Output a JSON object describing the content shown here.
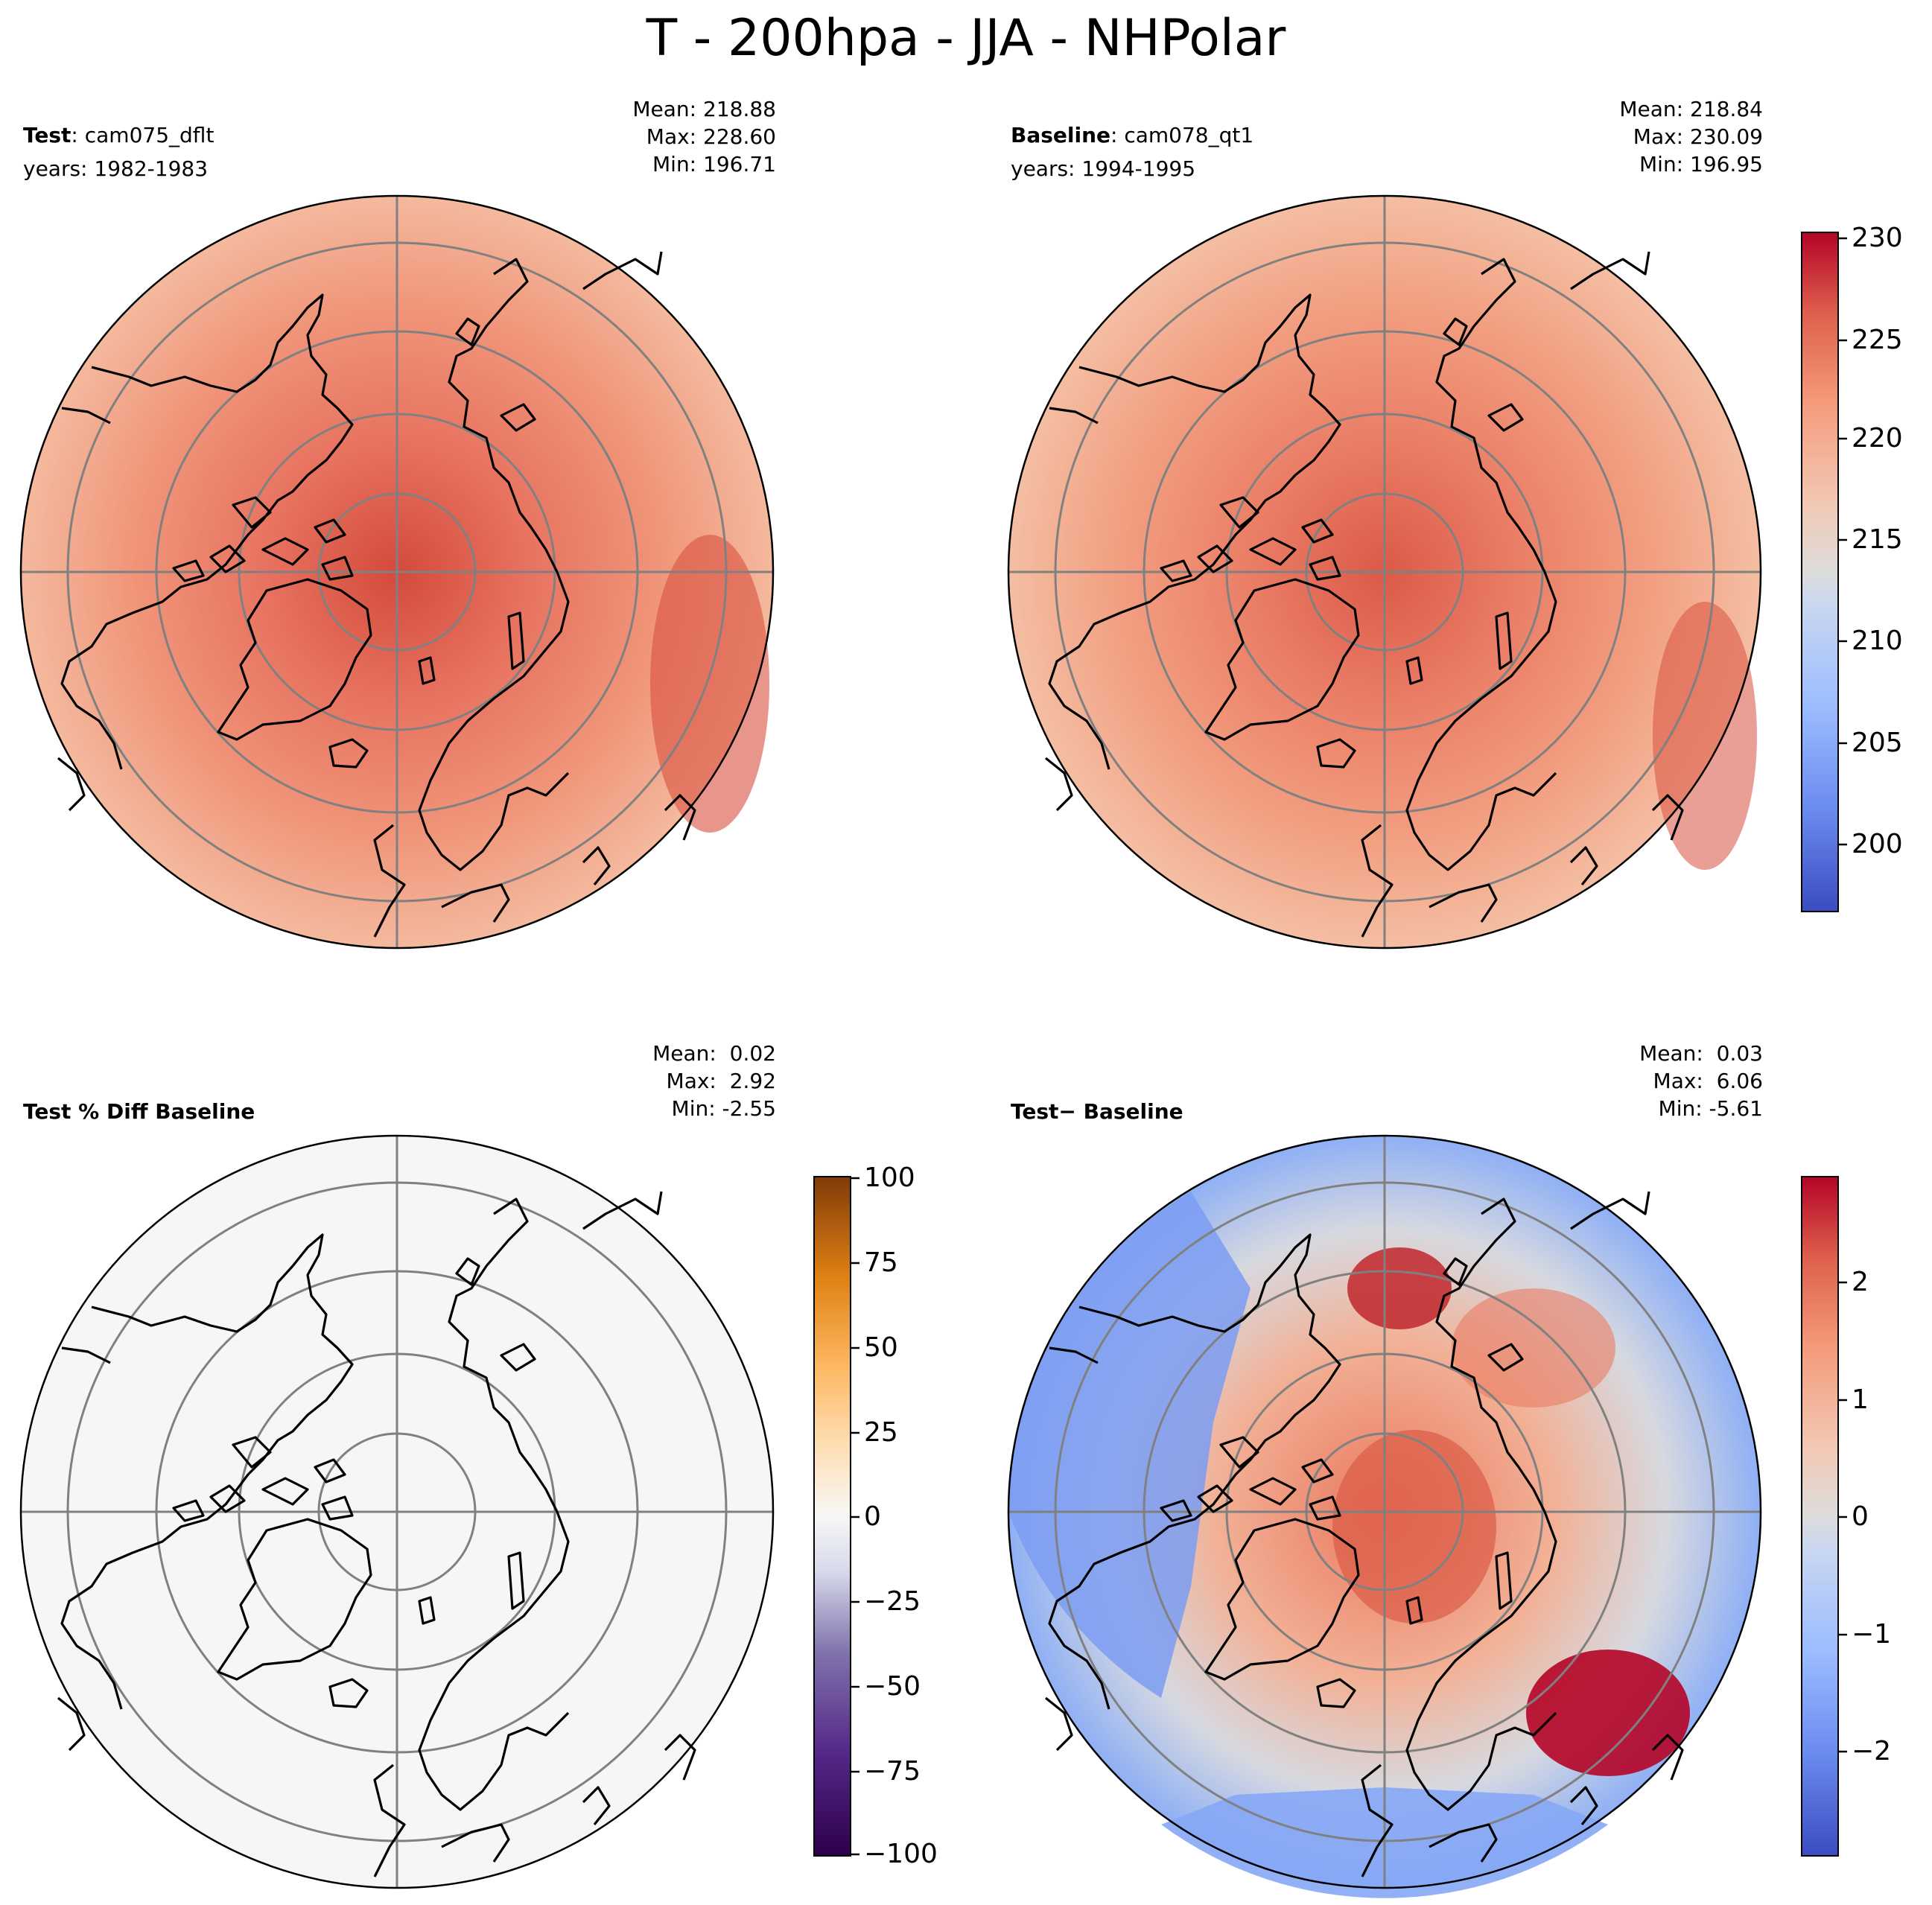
{
  "figure": {
    "title": "T - 200hpa - JJA - NHPolar"
  },
  "panels": [
    {
      "id": "test",
      "label_bold": "Test",
      "label_rest": ": cam075_dflt",
      "years": "years: 1982-1983",
      "stats": {
        "mean": "Mean: 218.88",
        "max": "Max: 228.60",
        "min": "Min: 196.71"
      }
    },
    {
      "id": "baseline",
      "label_bold": "Baseline",
      "label_rest": ": cam078_qt1",
      "years": "years: 1994-1995",
      "stats": {
        "mean": "Mean: 218.84",
        "max": "Max: 230.09",
        "min": "Min: 196.95"
      }
    },
    {
      "id": "pct-diff",
      "label_bold": "Test % Diff Baseline",
      "label_rest": "",
      "years": "",
      "stats": {
        "mean": "Mean:  0.02",
        "max": "Max:  2.92",
        "min": "Min: -2.55"
      }
    },
    {
      "id": "diff",
      "label_bold": "Test",
      "label_rest": "− Baseline",
      "years": "",
      "stats": {
        "mean": "Mean:  0.03",
        "max": "Max:  6.06",
        "min": "Min: -5.61"
      }
    }
  ],
  "colorbars": {
    "main": {
      "ticks": [
        "230",
        "225",
        "220",
        "215",
        "210",
        "205",
        "200"
      ],
      "range": [
        197,
        230
      ],
      "colormap": "coolwarm"
    },
    "pct": {
      "ticks": [
        "100",
        "75",
        "50",
        "25",
        "0",
        "−25",
        "−50",
        "−75",
        "−100"
      ],
      "range": [
        -100,
        100
      ],
      "colormap": "PuOr_r"
    },
    "diff": {
      "ticks": [
        "2",
        "1",
        "0",
        "−1",
        "−2"
      ],
      "range": [
        -2.9,
        2.9
      ],
      "colormap": "coolwarm"
    }
  },
  "chart_data": [
    {
      "type": "heatmap",
      "projection": "north-polar-stereographic",
      "field": "T",
      "level": "200hpa",
      "season": "JJA",
      "region": "NHPolar",
      "case": "cam075_dflt",
      "mean": 218.88,
      "max": 228.6,
      "min": 196.71,
      "colorbar_range": [
        197,
        230
      ]
    },
    {
      "type": "heatmap",
      "projection": "north-polar-stereographic",
      "field": "T",
      "level": "200hpa",
      "season": "JJA",
      "region": "NHPolar",
      "case": "cam078_qt1",
      "mean": 218.84,
      "max": 230.09,
      "min": 196.95,
      "colorbar_range": [
        197,
        230
      ]
    },
    {
      "type": "heatmap",
      "projection": "north-polar-stereographic",
      "field": "Test % Diff Baseline",
      "mean": 0.02,
      "max": 2.92,
      "min": -2.55,
      "colorbar_range": [
        -100,
        100
      ]
    },
    {
      "type": "heatmap",
      "projection": "north-polar-stereographic",
      "field": "Test − Baseline",
      "mean": 0.03,
      "max": 6.06,
      "min": -5.61,
      "colorbar_range": [
        -2.9,
        2.9
      ]
    }
  ]
}
